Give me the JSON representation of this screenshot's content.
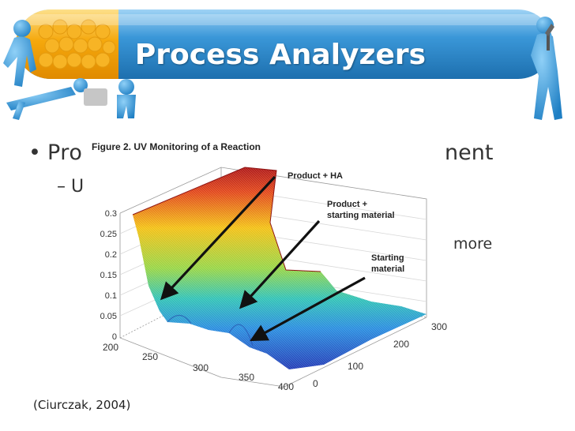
{
  "slide": {
    "title": "Process Analyzers",
    "bullet_1_start": "Pro",
    "bullet_1_end": "nent",
    "bullet_2_start": "– U",
    "bullet_2_end": "more",
    "citation": "(Ciurczak, 2004)"
  },
  "figure": {
    "caption": "Figure 2. UV Monitoring of a Reaction",
    "annotations": [
      "Product + HA",
      "Product +",
      "starting material",
      "Starting",
      "material"
    ]
  },
  "chart_data": {
    "type": "surface",
    "title": "Figure 2. UV Monitoring of a Reaction",
    "z_ticks": [
      "0",
      "0.05",
      "0.1",
      "0.15",
      "0.2",
      "0.25",
      "0.3"
    ],
    "x_ticks": [
      "200",
      "250",
      "300",
      "350",
      "400"
    ],
    "y_ticks": [
      "0",
      "100",
      "200",
      "300"
    ],
    "zlim": [
      0,
      0.3
    ],
    "xlim": [
      200,
      400
    ],
    "ylim": [
      0,
      300
    ],
    "grid": true
  },
  "colors": {
    "pill_orange": "#f2a20a",
    "pill_blue": "#2b86c8",
    "figure_blue": "#3a8fd6",
    "text": "#333333"
  }
}
